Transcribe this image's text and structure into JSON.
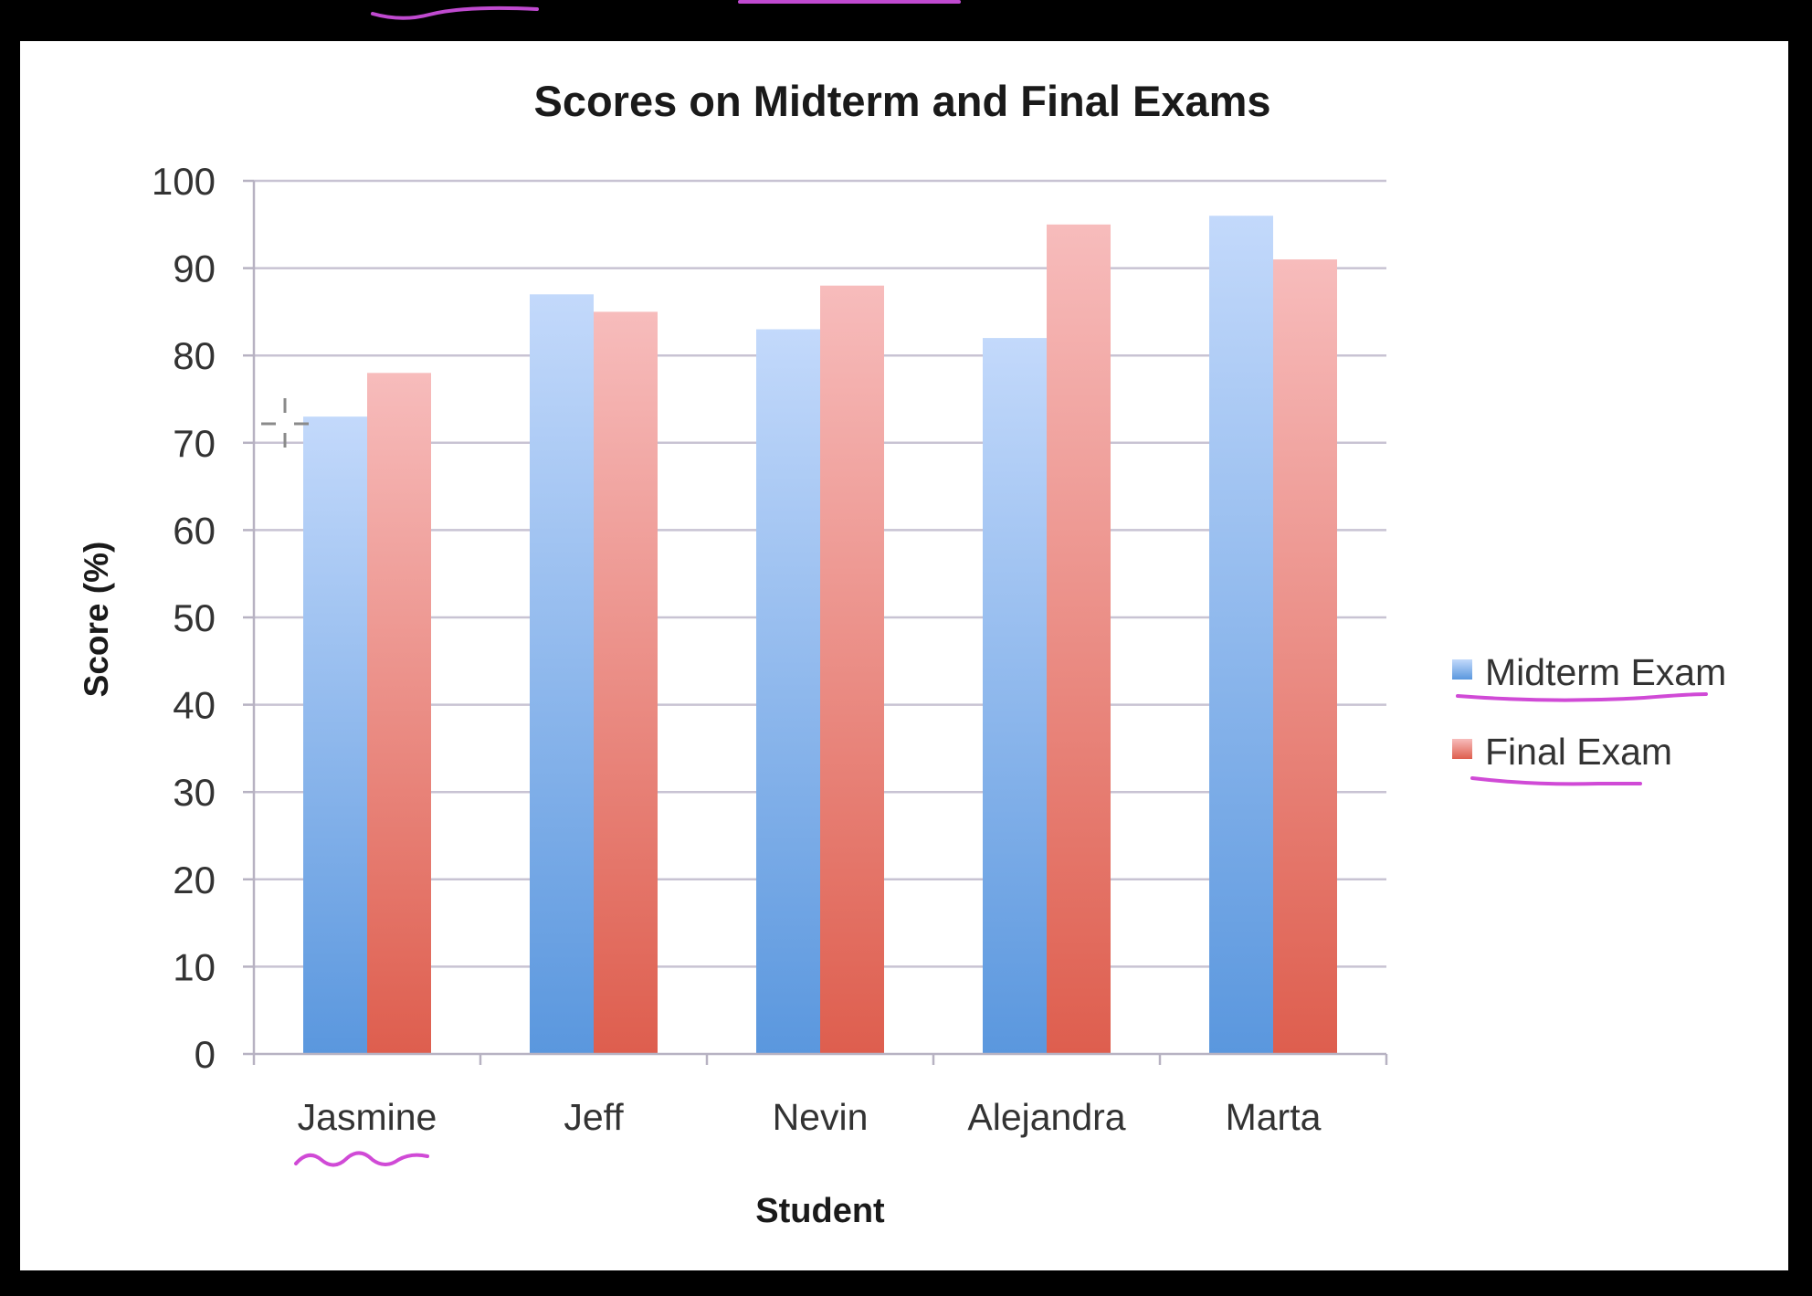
{
  "chart_data": {
    "type": "bar",
    "title": "Scores on Midterm and Final Exams",
    "xlabel": "Student",
    "ylabel": "Score (%)",
    "categories": [
      "Jasmine",
      "Jeff",
      "Nevin",
      "Alejandra",
      "Marta"
    ],
    "series": [
      {
        "name": "Midterm Exam",
        "values": [
          73,
          87,
          83,
          82,
          96
        ],
        "color": "#6fa5e8"
      },
      {
        "name": "Final Exam",
        "values": [
          78,
          85,
          88,
          95,
          91
        ],
        "color": "#e8716a"
      }
    ],
    "ylim": [
      0,
      100
    ],
    "yticks": [
      0,
      10,
      20,
      30,
      40,
      50,
      60,
      70,
      80,
      90,
      100
    ],
    "grid": true,
    "legend_position": "right"
  },
  "colors": {
    "frame_background": "#000000",
    "chart_background": "#ffffff",
    "gridline": "#c8c3d3",
    "annotation_ink": "#d04ad6"
  }
}
